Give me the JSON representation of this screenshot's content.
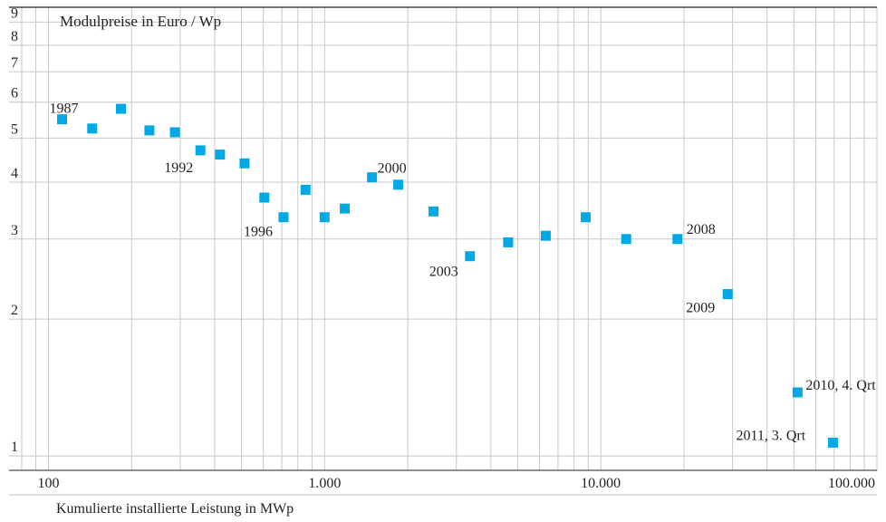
{
  "chart_data": {
    "type": "scatter",
    "title": "Modulpreise in Euro / Wp",
    "xlabel": "Kumulierte installierte Leistung in MWp",
    "ylabel": "",
    "x_scale": "log",
    "y_scale": "log",
    "xlim": [
      72,
      100000
    ],
    "ylim": [
      0.93,
      9.7
    ],
    "x_ticks": [
      {
        "value": 100,
        "label": "100"
      },
      {
        "value": 1000,
        "label": "1.000"
      },
      {
        "value": 10000,
        "label": "10.000"
      },
      {
        "value": 100000,
        "label": "100.000"
      }
    ],
    "y_ticks": [
      {
        "value": 1,
        "label": "1"
      },
      {
        "value": 2,
        "label": "2"
      },
      {
        "value": 3,
        "label": "3"
      },
      {
        "value": 4,
        "label": "4"
      },
      {
        "value": 5,
        "label": "5"
      },
      {
        "value": 6,
        "label": "6"
      },
      {
        "value": 7,
        "label": "7"
      },
      {
        "value": 8,
        "label": "8"
      },
      {
        "value": 9,
        "label": "9"
      }
    ],
    "grid": true,
    "marker_color": "#00a9e6",
    "series": [
      {
        "points": [
          {
            "x": 112,
            "y": 5.5,
            "label": "1987"
          },
          {
            "x": 144,
            "y": 5.25
          },
          {
            "x": 183,
            "y": 5.8
          },
          {
            "x": 232,
            "y": 5.2
          },
          {
            "x": 287,
            "y": 5.15
          },
          {
            "x": 355,
            "y": 4.7,
            "label": "1992"
          },
          {
            "x": 418,
            "y": 4.6
          },
          {
            "x": 513,
            "y": 4.4
          },
          {
            "x": 605,
            "y": 3.7
          },
          {
            "x": 710,
            "y": 3.35,
            "label": "1996"
          },
          {
            "x": 853,
            "y": 3.85
          },
          {
            "x": 1000,
            "y": 3.35
          },
          {
            "x": 1183,
            "y": 3.5
          },
          {
            "x": 1485,
            "y": 4.1,
            "label": "2000"
          },
          {
            "x": 1847,
            "y": 3.95
          },
          {
            "x": 2480,
            "y": 3.45
          },
          {
            "x": 3360,
            "y": 2.75,
            "label": "2003"
          },
          {
            "x": 4620,
            "y": 2.95
          },
          {
            "x": 6320,
            "y": 3.05
          },
          {
            "x": 8820,
            "y": 3.35
          },
          {
            "x": 12360,
            "y": 3.0
          },
          {
            "x": 18950,
            "y": 3.0,
            "label": "2008"
          },
          {
            "x": 28800,
            "y": 2.27,
            "label": "2009"
          },
          {
            "x": 51600,
            "y": 1.38,
            "label": "2010, 4. Qrt"
          },
          {
            "x": 69300,
            "y": 1.07,
            "label": "2011, 3. Qrt"
          }
        ]
      }
    ]
  }
}
